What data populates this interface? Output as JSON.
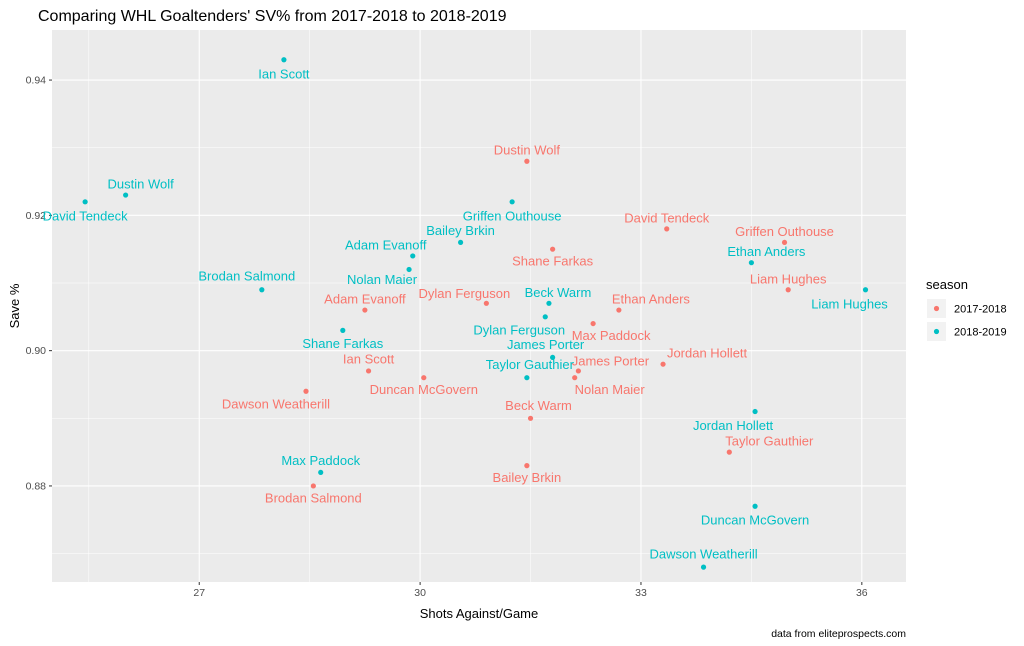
{
  "chart_data": {
    "type": "scatter",
    "title": "Comparing WHL Goaltenders' SV% from 2017-2018 to 2018-2019",
    "xlabel": "Shots Against/Game",
    "ylabel": "Save %",
    "caption": "data from eliteprospects.com",
    "xlim": [
      25.0,
      36.6
    ],
    "ylim": [
      0.8658,
      0.9474
    ],
    "x_ticks": [
      27,
      30,
      33,
      36
    ],
    "x_tick_labels": [
      "27",
      "30",
      "33",
      "36"
    ],
    "y_ticks": [
      0.88,
      0.9,
      0.92,
      0.94
    ],
    "y_tick_labels": [
      "0.88",
      "0.90",
      "0.92",
      "0.94"
    ],
    "grid": true,
    "legend": {
      "title": "season",
      "position": "right",
      "entries": [
        {
          "label": "2017-2018",
          "color": "#F8766D"
        },
        {
          "label": "2018-2019",
          "color": "#00BFC4"
        }
      ]
    },
    "series": [
      {
        "name": "2017-2018",
        "color": "#F8766D",
        "points": [
          {
            "name": "Dustin Wolf",
            "x": 31.45,
            "y": 0.928
          },
          {
            "name": "David Tendeck",
            "x": 33.35,
            "y": 0.918
          },
          {
            "name": "Griffen Outhouse",
            "x": 34.95,
            "y": 0.916
          },
          {
            "name": "Shane Farkas",
            "x": 31.8,
            "y": 0.915
          },
          {
            "name": "Liam Hughes",
            "x": 35.0,
            "y": 0.909
          },
          {
            "name": "Dylan Ferguson",
            "x": 30.9,
            "y": 0.907
          },
          {
            "name": "Ethan Anders",
            "x": 32.7,
            "y": 0.906
          },
          {
            "name": "Adam Evanoff",
            "x": 29.25,
            "y": 0.906
          },
          {
            "name": "Max Paddock",
            "x": 32.35,
            "y": 0.904
          },
          {
            "name": "Jordan Hollett",
            "x": 33.3,
            "y": 0.898
          },
          {
            "name": "Ian Scott",
            "x": 29.3,
            "y": 0.897
          },
          {
            "name": "James Porter",
            "x": 32.15,
            "y": 0.897
          },
          {
            "name": "Duncan McGovern",
            "x": 30.05,
            "y": 0.896
          },
          {
            "name": "Nolan Maier",
            "x": 32.1,
            "y": 0.896
          },
          {
            "name": "Dawson Weatherill",
            "x": 28.45,
            "y": 0.894
          },
          {
            "name": "Beck Warm",
            "x": 31.5,
            "y": 0.89
          },
          {
            "name": "Taylor Gauthier",
            "x": 34.2,
            "y": 0.885
          },
          {
            "name": "Bailey Brkin",
            "x": 31.45,
            "y": 0.883
          },
          {
            "name": "Brodan Salmond",
            "x": 28.55,
            "y": 0.88
          }
        ]
      },
      {
        "name": "2018-2019",
        "color": "#00BFC4",
        "points": [
          {
            "name": "Ian Scott",
            "x": 28.15,
            "y": 0.943
          },
          {
            "name": "Dustin Wolf",
            "x": 26.0,
            "y": 0.923
          },
          {
            "name": "David Tendeck",
            "x": 25.45,
            "y": 0.922
          },
          {
            "name": "Griffen Outhouse",
            "x": 31.25,
            "y": 0.922
          },
          {
            "name": "Bailey Brkin",
            "x": 30.55,
            "y": 0.916
          },
          {
            "name": "Adam Evanoff",
            "x": 29.9,
            "y": 0.914
          },
          {
            "name": "Ethan Anders",
            "x": 34.5,
            "y": 0.913
          },
          {
            "name": "Nolan Maier",
            "x": 29.85,
            "y": 0.912
          },
          {
            "name": "Brodan Salmond",
            "x": 27.85,
            "y": 0.909
          },
          {
            "name": "Liam Hughes",
            "x": 36.05,
            "y": 0.909
          },
          {
            "name": "Beck Warm",
            "x": 31.75,
            "y": 0.907
          },
          {
            "name": "Dylan Ferguson",
            "x": 31.7,
            "y": 0.905
          },
          {
            "name": "Shane Farkas",
            "x": 28.95,
            "y": 0.903
          },
          {
            "name": "James Porter",
            "x": 31.8,
            "y": 0.899
          },
          {
            "name": "Taylor Gauthier",
            "x": 31.45,
            "y": 0.896
          },
          {
            "name": "Jordan Hollett",
            "x": 34.55,
            "y": 0.891
          },
          {
            "name": "Max Paddock",
            "x": 28.65,
            "y": 0.882
          },
          {
            "name": "Duncan McGovern",
            "x": 34.55,
            "y": 0.877
          },
          {
            "name": "Dawson Weatherill",
            "x": 33.85,
            "y": 0.868
          }
        ]
      }
    ]
  }
}
